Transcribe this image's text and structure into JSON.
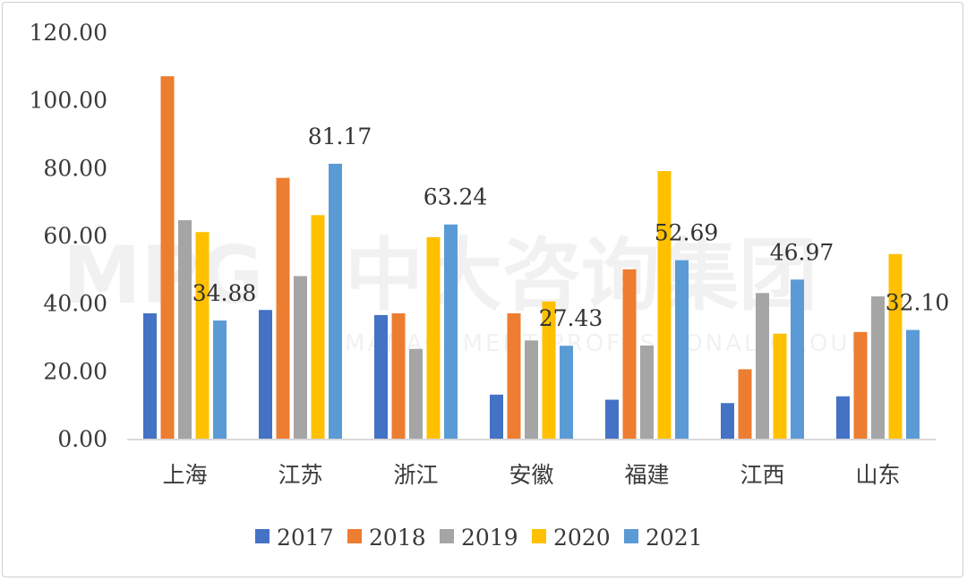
{
  "watermark": {
    "logo": "MPG",
    "name": "中大咨询集团",
    "subtitle": "MANAGEMENT PROFESSIONAL GROUP"
  },
  "chart_data": {
    "type": "bar",
    "categories": [
      "上海",
      "江苏",
      "浙江",
      "安徽",
      "福建",
      "江西",
      "山东"
    ],
    "series": [
      {
        "name": "2017",
        "color": "#4472C4",
        "values": [
          37.0,
          38.0,
          36.5,
          13.0,
          11.5,
          10.5,
          12.5
        ]
      },
      {
        "name": "2018",
        "color": "#ED7D31",
        "values": [
          107.0,
          77.0,
          37.0,
          37.0,
          50.0,
          20.5,
          31.5
        ]
      },
      {
        "name": "2019",
        "color": "#A5A5A5",
        "values": [
          64.5,
          48.0,
          26.5,
          29.0,
          27.5,
          43.0,
          42.0
        ]
      },
      {
        "name": "2020",
        "color": "#FFC000",
        "values": [
          61.0,
          66.0,
          59.5,
          40.5,
          79.0,
          31.0,
          54.5
        ]
      },
      {
        "name": "2021",
        "color": "#5B9BD5",
        "values": [
          34.88,
          81.17,
          63.24,
          27.43,
          52.69,
          46.97,
          32.1
        ]
      }
    ],
    "data_labels": [
      {
        "series": "2021",
        "category": "上海",
        "text": "34.88"
      },
      {
        "series": "2021",
        "category": "江苏",
        "text": "81.17"
      },
      {
        "series": "2021",
        "category": "浙江",
        "text": "63.24"
      },
      {
        "series": "2021",
        "category": "安徽",
        "text": "27.43"
      },
      {
        "series": "2021",
        "category": "福建",
        "text": "52.69"
      },
      {
        "series": "2021",
        "category": "江西",
        "text": "46.97"
      },
      {
        "series": "2021",
        "category": "山东",
        "text": "32.10"
      }
    ],
    "y_ticks": [
      "0.00",
      "20.00",
      "40.00",
      "60.00",
      "80.00",
      "100.00",
      "120.00"
    ],
    "ylim": [
      0,
      120
    ],
    "title": "",
    "xlabel": "",
    "ylabel": "",
    "grid": false,
    "legend_position": "bottom"
  }
}
